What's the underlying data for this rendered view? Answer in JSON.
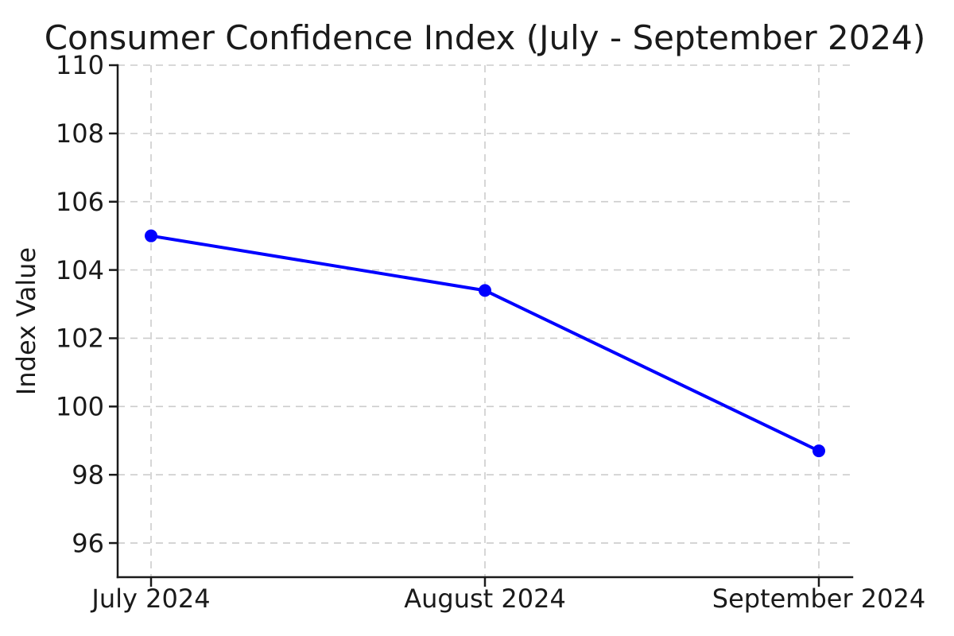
{
  "chart_data": {
    "type": "line",
    "title": "Consumer Confidence Index (July - September 2024)",
    "categories": [
      "July 2024",
      "August 2024",
      "September 2024"
    ],
    "values": [
      105.0,
      103.4,
      98.7
    ],
    "xlabel": "",
    "ylabel": "Index Value",
    "ylim": [
      95,
      110
    ],
    "yticks": [
      96,
      98,
      100,
      102,
      104,
      106,
      108,
      110
    ],
    "grid": true,
    "grid_style": "dashed",
    "legend_position": "none",
    "line_color": "#0000ff",
    "marker_color": "#0000ff",
    "marker_shape": "circle",
    "grid_color": "#cccccc",
    "axis_color": "#1a1a1a",
    "text_color": "#1a1a1a"
  }
}
